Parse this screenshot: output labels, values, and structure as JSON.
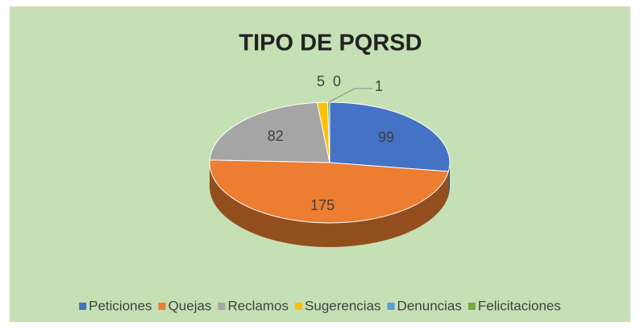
{
  "chart_data": {
    "type": "pie",
    "title": "TIPO DE PQRSD",
    "categories": [
      "Peticiones",
      "Quejas",
      "Reclamos",
      "Sugerencias",
      "Denuncias",
      "Felicitaciones"
    ],
    "values": [
      99,
      175,
      82,
      5,
      0,
      1
    ],
    "colors": [
      "#4472c4",
      "#ed7d31",
      "#a5a5a5",
      "#ffc000",
      "#5b9bd5",
      "#70ad47"
    ],
    "legend": "bottom"
  }
}
